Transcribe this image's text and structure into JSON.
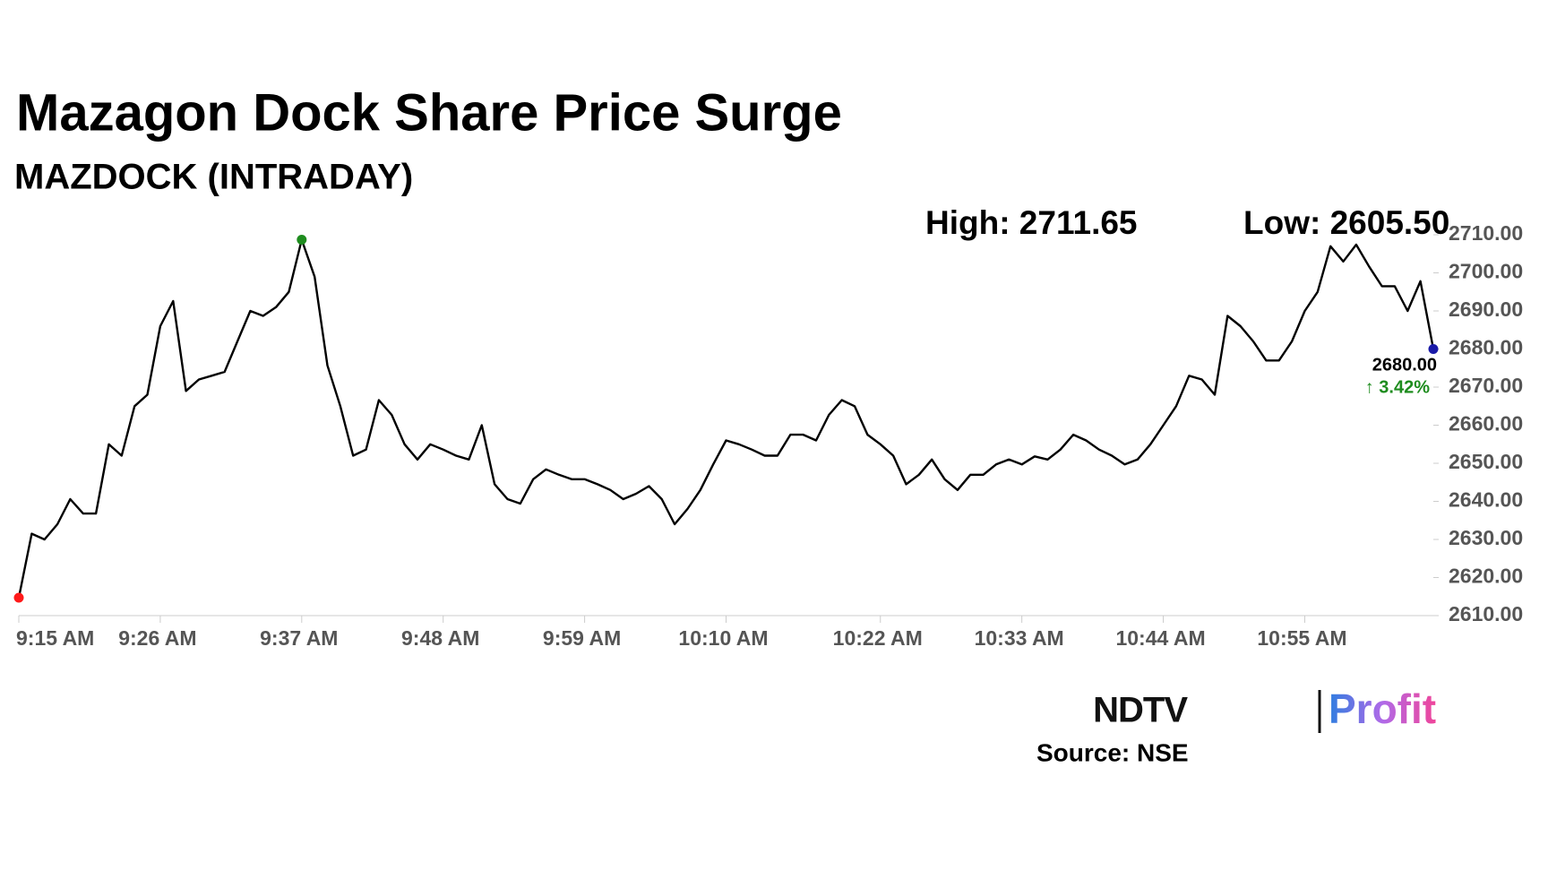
{
  "chart_data": {
    "type": "line",
    "title": "Mazagon Dock Share Price Surge",
    "subtitle": "MAZDOCK (INTRADAY)",
    "annotations": {
      "high": "High: 2711.65",
      "low": "Low: 2605.50",
      "last_value": "2680.00",
      "change": "↑ 3.42%"
    },
    "source": "Source: NSE",
    "brand": {
      "left": "NDTV",
      "right": "Profit"
    },
    "color": "#000000",
    "start_color": "#ff1a1a",
    "high_color": "#1e8c1e",
    "end_color": "#1a1aa8",
    "change_color": "#1e8c1e",
    "grid": false,
    "x": [
      "9:15 AM",
      "9:16 AM",
      "9:17 AM",
      "9:18 AM",
      "9:19 AM",
      "9:20 AM",
      "9:21 AM",
      "9:22 AM",
      "9:23 AM",
      "9:24 AM",
      "9:25 AM",
      "9:26 AM",
      "9:27 AM",
      "9:28 AM",
      "9:29 AM",
      "9:30 AM",
      "9:31 AM",
      "9:32 AM",
      "9:33 AM",
      "9:34 AM",
      "9:35 AM",
      "9:36 AM",
      "9:37 AM",
      "9:38 AM",
      "9:39 AM",
      "9:40 AM",
      "9:41 AM",
      "9:42 AM",
      "9:43 AM",
      "9:44 AM",
      "9:45 AM",
      "9:46 AM",
      "9:47 AM",
      "9:48 AM",
      "9:49 AM",
      "9:50 AM",
      "9:51 AM",
      "9:52 AM",
      "9:53 AM",
      "9:54 AM",
      "9:55 AM",
      "9:56 AM",
      "9:57 AM",
      "9:58 AM",
      "9:59 AM",
      "10:00 AM",
      "10:01 AM",
      "10:02 AM",
      "10:03 AM",
      "10:04 AM",
      "10:05 AM",
      "10:06 AM",
      "10:07 AM",
      "10:08 AM",
      "10:09 AM",
      "10:10 AM",
      "10:11 AM",
      "10:12 AM",
      "10:13 AM",
      "10:14 AM",
      "10:15 AM",
      "10:16 AM",
      "10:17 AM",
      "10:18 AM",
      "10:19 AM",
      "10:20 AM",
      "10:21 AM",
      "10:22 AM",
      "10:23 AM",
      "10:24 AM",
      "10:25 AM",
      "10:26 AM",
      "10:27 AM",
      "10:28 AM",
      "10:29 AM",
      "10:30 AM",
      "10:31 AM",
      "10:32 AM",
      "10:33 AM",
      "10:34 AM",
      "10:35 AM",
      "10:36 AM",
      "10:37 AM",
      "10:38 AM",
      "10:39 AM",
      "10:40 AM",
      "10:41 AM",
      "10:42 AM",
      "10:43 AM",
      "10:44 AM",
      "10:45 AM",
      "10:46 AM",
      "10:47 AM",
      "10:48 AM",
      "10:49 AM",
      "10:50 AM",
      "10:51 AM",
      "10:52 AM",
      "10:53 AM",
      "10:54 AM",
      "10:55 AM",
      "10:56 AM",
      "10:57 AM",
      "10:58 AM",
      "10:59 AM",
      "11:00 AM",
      "11:01 AM",
      "11:02 AM",
      "11:03 AM",
      "11:04 AM",
      "11:05 AM"
    ],
    "values": [
      2614.7,
      2631.5,
      2630,
      2634,
      2640.6,
      2636.8,
      2636.8,
      2655,
      2652,
      2665,
      2668,
      2686,
      2692.6,
      2669,
      2672,
      2673,
      2674,
      2682,
      2690,
      2688.7,
      2691,
      2695,
      2708.7,
      2699,
      2675.7,
      2665,
      2652,
      2653.6,
      2666.6,
      2662.7,
      2655,
      2651,
      2655,
      2653.6,
      2652,
      2651,
      2660,
      2644.5,
      2640.6,
      2639.4,
      2645.8,
      2648.4,
      2647,
      2645.8,
      2645.8,
      2644.5,
      2643,
      2640.6,
      2642,
      2644,
      2640.6,
      2634,
      2638,
      2643,
      2649.7,
      2656,
      2655,
      2653.6,
      2652,
      2652,
      2657.5,
      2657.5,
      2656,
      2662.7,
      2666.6,
      2665,
      2657.5,
      2655,
      2652,
      2644.5,
      2647,
      2651,
      2645.8,
      2643,
      2647,
      2647,
      2649.7,
      2651,
      2649.7,
      2651.8,
      2651,
      2653.6,
      2657.5,
      2656,
      2653.6,
      2652,
      2649.7,
      2651,
      2655,
      2660,
      2665,
      2673,
      2672,
      2668,
      2688.7,
      2686,
      2682,
      2677,
      2677,
      2682,
      2690,
      2695,
      2707,
      2703,
      2707.4,
      2701.7,
      2696.5,
      2696.5,
      2690,
      2697.8,
      2680
    ],
    "xticks": [
      "9:15 AM",
      "9:26 AM",
      "9:37 AM",
      "9:48 AM",
      "9:59 AM",
      "10:10 AM",
      "10:22 AM",
      "10:33 AM",
      "10:44 AM",
      "10:55 AM"
    ],
    "ylim": [
      2610,
      2710
    ],
    "yticks": [
      {
        "value": 2610,
        "label": "2610.00"
      },
      {
        "value": 2620,
        "label": "2620.00"
      },
      {
        "value": 2630,
        "label": "2630.00"
      },
      {
        "value": 2640,
        "label": "2640.00"
      },
      {
        "value": 2650,
        "label": "2650.00"
      },
      {
        "value": 2660,
        "label": "2660.00"
      },
      {
        "value": 2670,
        "label": "2670.00"
      },
      {
        "value": 2680,
        "label": "2680.00"
      },
      {
        "value": 2690,
        "label": "2690.00"
      },
      {
        "value": 2700,
        "label": "2700.00"
      },
      {
        "value": 2710,
        "label": "2710.00"
      }
    ]
  }
}
